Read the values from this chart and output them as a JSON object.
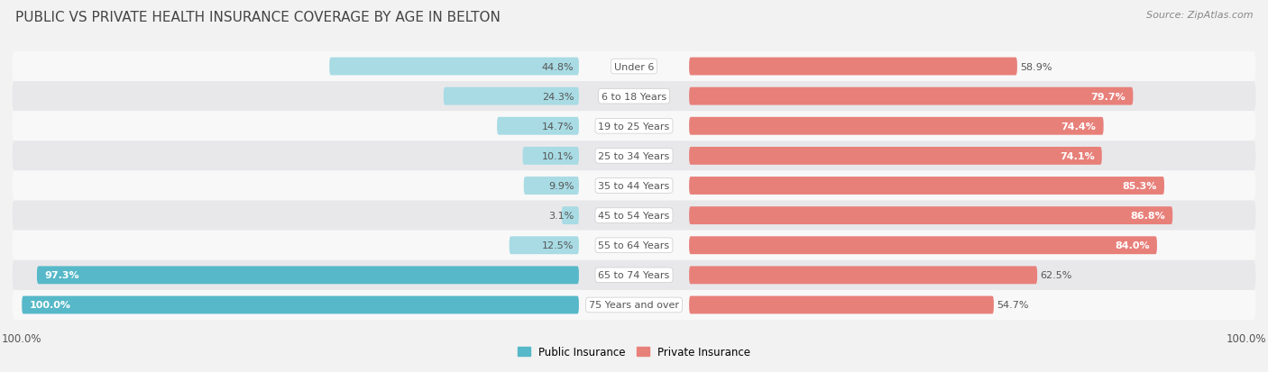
{
  "title": "PUBLIC VS PRIVATE HEALTH INSURANCE COVERAGE BY AGE IN BELTON",
  "source": "Source: ZipAtlas.com",
  "categories": [
    "Under 6",
    "6 to 18 Years",
    "19 to 25 Years",
    "25 to 34 Years",
    "35 to 44 Years",
    "45 to 54 Years",
    "55 to 64 Years",
    "65 to 74 Years",
    "75 Years and over"
  ],
  "public_values": [
    44.8,
    24.3,
    14.7,
    10.1,
    9.9,
    3.1,
    12.5,
    97.3,
    100.0
  ],
  "private_values": [
    58.9,
    79.7,
    74.4,
    74.1,
    85.3,
    86.8,
    84.0,
    62.5,
    54.7
  ],
  "public_color": "#56b8c8",
  "private_color": "#e8807a",
  "public_color_light": "#a8dbe4",
  "private_color_light": "#f2b8b3",
  "bg_color": "#f2f2f2",
  "row_bg_even": "#f8f8f8",
  "row_bg_odd": "#e8e8eb",
  "title_color": "#444444",
  "label_color": "#555555",
  "white_text": "#ffffff",
  "axis_max": 100.0,
  "legend_public": "Public Insurance",
  "legend_private": "Private Insurance",
  "title_fontsize": 11,
  "source_fontsize": 8,
  "label_fontsize": 8.5,
  "category_fontsize": 8,
  "value_fontsize": 8
}
